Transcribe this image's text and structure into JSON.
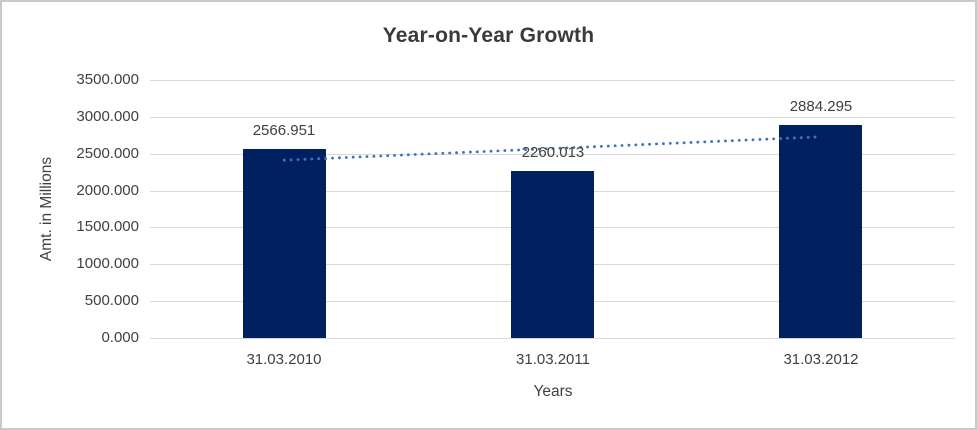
{
  "window": {
    "background": "#ffffff",
    "border_color": "#c9c9c9"
  },
  "chart_data": {
    "type": "bar",
    "title": "Year-on-Year Growth",
    "xlabel": "Years",
    "ylabel": "Amt. in Millions",
    "categories": [
      "31.03.2010",
      "31.03.2011",
      "31.03.2012"
    ],
    "series": [
      {
        "name": "Amt. in Millions",
        "values": [
          2566.951,
          2260.013,
          2884.295
        ]
      }
    ],
    "data_labels": [
      "2566.951",
      "2260.013",
      "2884.295"
    ],
    "ylim": [
      0,
      3500
    ],
    "ytick_step": 500,
    "ytick_labels": [
      "0.000",
      "500.000",
      "1000.000",
      "1500.000",
      "2000.000",
      "2500.000",
      "3000.000",
      "3500.000"
    ],
    "grid": true,
    "legend_position": "none",
    "trendline": {
      "type": "linear",
      "style": "dotted",
      "color": "#3e74c0"
    },
    "colors": {
      "bar": "#002060",
      "gridline": "#d9d9d9",
      "axis_line": "#d9d9d9",
      "text": "#404040",
      "title": "#3a3a3a"
    }
  }
}
